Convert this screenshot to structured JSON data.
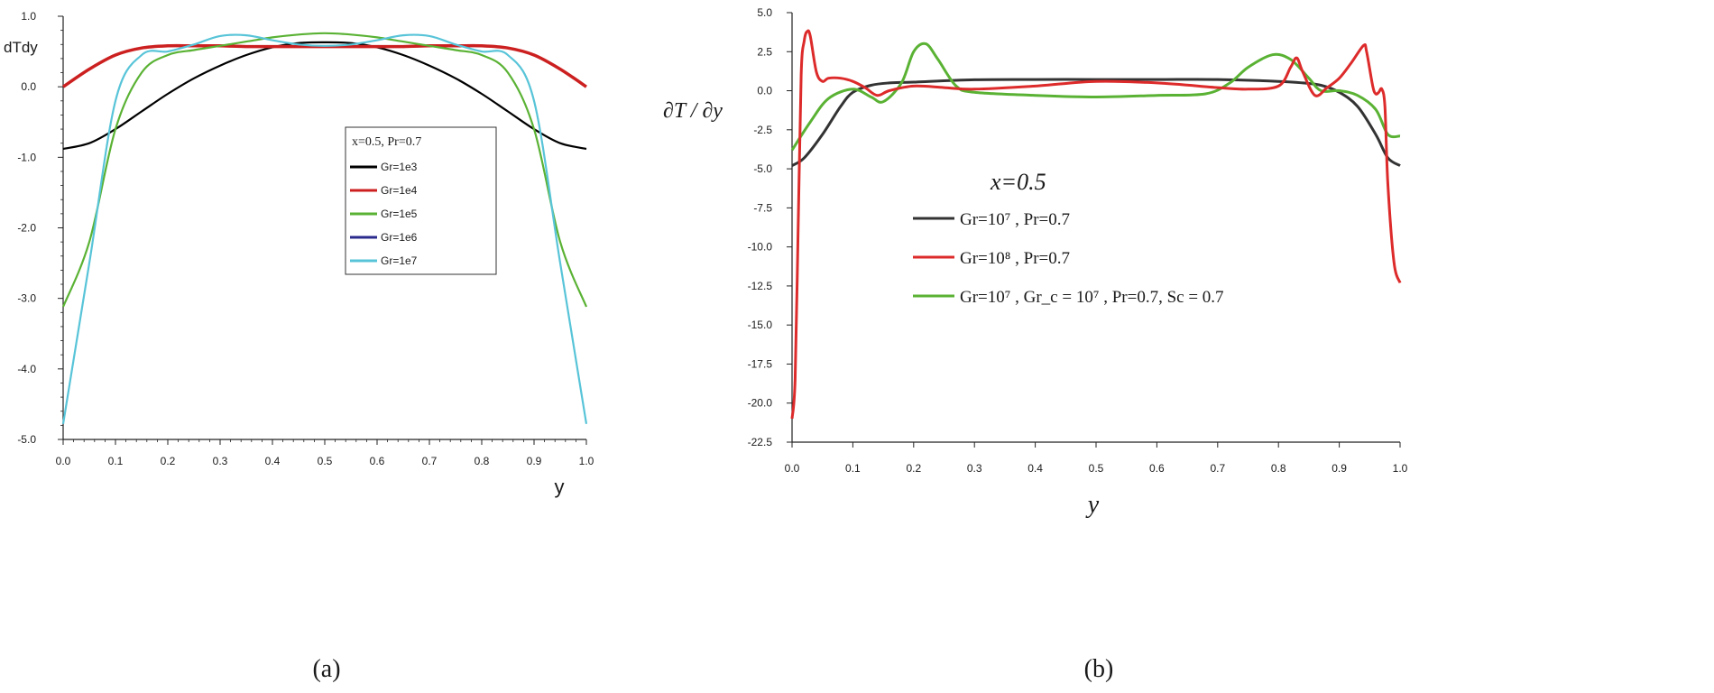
{
  "chart_data": [
    {
      "type": "line",
      "panel_label": "(a)",
      "ylabel": "dTdy",
      "xlabel": "y",
      "xlim": [
        0.0,
        1.0
      ],
      "ylim": [
        -5.0,
        1.0
      ],
      "xticks": [
        "0.0",
        "0.1",
        "0.2",
        "0.3",
        "0.4",
        "0.5",
        "0.6",
        "0.7",
        "0.8",
        "0.9",
        "1.0"
      ],
      "yticks": [
        "1.0",
        "0.0",
        "-1.0",
        "-2.0",
        "-3.0",
        "-4.0",
        "-5.0"
      ],
      "legend_title": "x=0.5, Pr=0.7",
      "legend_position": "center-right",
      "x": [
        0.0,
        0.05,
        0.1,
        0.15,
        0.2,
        0.25,
        0.3,
        0.35,
        0.4,
        0.45,
        0.5,
        0.55,
        0.6,
        0.65,
        0.7,
        0.75,
        0.8,
        0.85,
        0.9,
        0.95,
        1.0
      ],
      "series": [
        {
          "name": "Gr=1e3",
          "color": "#000000",
          "values": [
            -0.88,
            -0.8,
            -0.6,
            -0.35,
            -0.1,
            0.12,
            0.3,
            0.45,
            0.56,
            0.62,
            0.63,
            0.62,
            0.56,
            0.45,
            0.3,
            0.12,
            -0.1,
            -0.35,
            -0.6,
            -0.8,
            -0.88
          ]
        },
        {
          "name": "Gr=1e4",
          "color": "#cc2020",
          "values": [
            0.0,
            0.25,
            0.45,
            0.55,
            0.58,
            0.58,
            0.58,
            0.57,
            0.57,
            0.57,
            0.57,
            0.57,
            0.57,
            0.57,
            0.58,
            0.58,
            0.58,
            0.55,
            0.45,
            0.25,
            0.0
          ]
        },
        {
          "name": "Gr=1e5",
          "color": "#5ab234",
          "values": [
            -3.12,
            -2.2,
            -0.6,
            0.2,
            0.45,
            0.52,
            0.58,
            0.64,
            0.7,
            0.74,
            0.76,
            0.74,
            0.7,
            0.64,
            0.58,
            0.52,
            0.45,
            0.2,
            -0.6,
            -2.2,
            -3.12
          ]
        },
        {
          "name": "Gr=1e6",
          "color": "#2a2a8c",
          "values": [
            -4.78,
            -2.5,
            -0.2,
            0.45,
            0.5,
            0.6,
            0.72,
            0.73,
            0.66,
            0.6,
            0.58,
            0.6,
            0.66,
            0.73,
            0.72,
            0.6,
            0.5,
            0.45,
            -0.2,
            -2.5,
            -4.78
          ]
        },
        {
          "name": "Gr=1e7",
          "color": "#58c4d8",
          "values": [
            -4.78,
            -2.5,
            -0.2,
            0.45,
            0.5,
            0.6,
            0.72,
            0.73,
            0.66,
            0.6,
            0.58,
            0.6,
            0.66,
            0.73,
            0.72,
            0.6,
            0.5,
            0.45,
            -0.2,
            -2.5,
            -4.78
          ]
        }
      ]
    },
    {
      "type": "line",
      "panel_label": "(b)",
      "ylabel": "∂T / ∂y",
      "xlabel": "y",
      "xlim": [
        0.0,
        1.0
      ],
      "ylim": [
        -22.5,
        5.0
      ],
      "xticks": [
        "0.0",
        "0.1",
        "0.2",
        "0.3",
        "0.4",
        "0.5",
        "0.6",
        "0.7",
        "0.8",
        "0.9",
        "1.0"
      ],
      "yticks": [
        "5.0",
        "2.5",
        "0.0",
        "-2.5",
        "-5.0",
        "-7.5",
        "-10.0",
        "-12.5",
        "-15.0",
        "-17.5",
        "-20.0",
        "-22.5"
      ],
      "legend_title": "x=0.5",
      "legend_position": "center-left",
      "series": [
        {
          "name": "Gr=10⁷ , Pr=0.7",
          "color": "#333333",
          "x": [
            0.0,
            0.02,
            0.05,
            0.08,
            0.1,
            0.13,
            0.16,
            0.2,
            0.3,
            0.4,
            0.5,
            0.6,
            0.7,
            0.8,
            0.84,
            0.87,
            0.9,
            0.93,
            0.96,
            0.98,
            1.0
          ],
          "values": [
            -4.8,
            -4.3,
            -2.8,
            -1.0,
            -0.1,
            0.35,
            0.5,
            0.55,
            0.7,
            0.72,
            0.72,
            0.72,
            0.72,
            0.6,
            0.5,
            0.35,
            -0.1,
            -1.0,
            -2.8,
            -4.3,
            -4.8
          ]
        },
        {
          "name": "Gr=10⁸ , Pr=0.7",
          "color": "#dd2a2a",
          "x": [
            0.0,
            0.005,
            0.01,
            0.015,
            0.02,
            0.025,
            0.03,
            0.04,
            0.05,
            0.06,
            0.08,
            0.1,
            0.12,
            0.14,
            0.16,
            0.2,
            0.25,
            0.3,
            0.4,
            0.5,
            0.6,
            0.7,
            0.75,
            0.8,
            0.82,
            0.83,
            0.84,
            0.86,
            0.88,
            0.9,
            0.92,
            0.94,
            0.945,
            0.955,
            0.96,
            0.965,
            0.97,
            0.975,
            0.98,
            0.99,
            1.0
          ],
          "values": [
            -21.0,
            -18.5,
            -9.0,
            1.0,
            3.2,
            3.8,
            3.5,
            1.2,
            0.6,
            0.8,
            0.8,
            0.6,
            0.2,
            -0.3,
            0.0,
            0.3,
            0.2,
            0.1,
            0.3,
            0.6,
            0.5,
            0.2,
            0.1,
            0.3,
            1.5,
            2.1,
            1.2,
            -0.3,
            0.2,
            0.8,
            1.8,
            2.9,
            2.5,
            0.3,
            -0.2,
            -0.1,
            0.1,
            -1.0,
            -6.0,
            -11.0,
            -12.3
          ]
        },
        {
          "name": "Gr=10⁷ , Gr_c = 10⁷ , Pr=0.7, Sc = 0.7",
          "color": "#5ab234",
          "x": [
            0.0,
            0.03,
            0.06,
            0.1,
            0.13,
            0.15,
            0.18,
            0.2,
            0.22,
            0.24,
            0.27,
            0.3,
            0.4,
            0.5,
            0.6,
            0.68,
            0.72,
            0.75,
            0.79,
            0.82,
            0.85,
            0.87,
            0.9,
            0.93,
            0.96,
            0.98,
            1.0
          ],
          "values": [
            -3.8,
            -2.0,
            -0.5,
            0.1,
            -0.4,
            -0.7,
            0.5,
            2.5,
            3.0,
            2.0,
            0.3,
            -0.1,
            -0.3,
            -0.4,
            -0.3,
            -0.2,
            0.5,
            1.5,
            2.3,
            2.0,
            0.8,
            0.0,
            0.0,
            -0.3,
            -1.2,
            -2.8,
            -2.9
          ]
        }
      ]
    }
  ]
}
